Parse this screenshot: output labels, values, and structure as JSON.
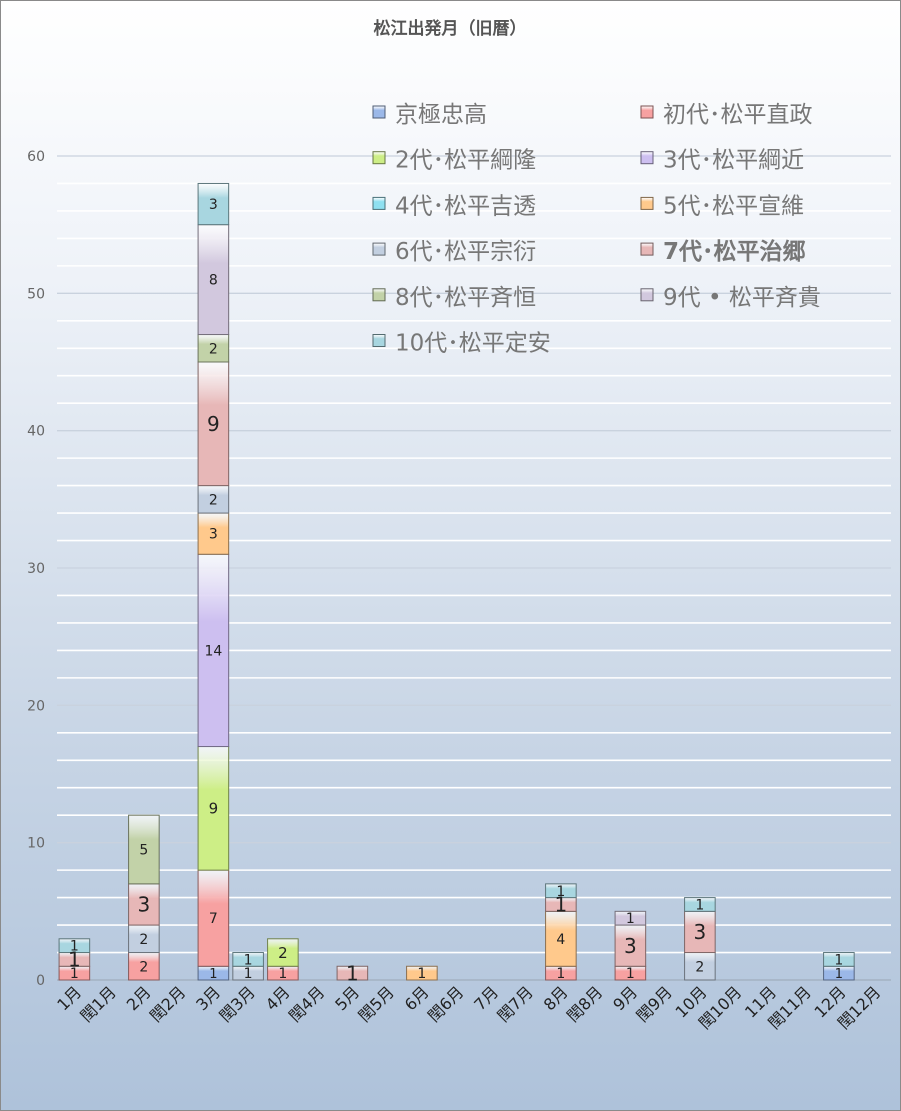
{
  "chart_data": {
    "type": "bar",
    "stacked": true,
    "title": "松江出発月（旧暦）",
    "xlabel": "",
    "ylabel": "",
    "ylim": [
      0,
      60
    ],
    "yticks": [
      0,
      10,
      20,
      30,
      40,
      50,
      60
    ],
    "minor_gridline_step": 2,
    "grid": true,
    "legend_position": "top-right",
    "categories": [
      "1月",
      "閏1月",
      "2月",
      "閏2月",
      "3月",
      "閏3月",
      "4月",
      "閏4月",
      "5月",
      "閏5月",
      "6月",
      "閏6月",
      "7月",
      "閏7月",
      "8月",
      "閏8月",
      "9月",
      "閏9月",
      "10月",
      "閏10月",
      "11月",
      "閏11月",
      "12月",
      "閏12月"
    ],
    "series": [
      {
        "name": "京極忠高",
        "color": "#9bb8e8",
        "label_color": "#ffffff",
        "label_size": 13,
        "values": [
          0,
          0,
          0,
          0,
          1,
          0,
          0,
          0,
          0,
          0,
          0,
          0,
          0,
          0,
          0,
          0,
          0,
          0,
          0,
          0,
          0,
          0,
          1,
          0
        ]
      },
      {
        "name": "初代･松平直政",
        "color": "#f7a1a1",
        "label_color": "#ffffff",
        "label_size": 14,
        "values": [
          1,
          0,
          2,
          0,
          7,
          0,
          1,
          0,
          0,
          0,
          0,
          0,
          0,
          0,
          1,
          0,
          1,
          0,
          0,
          0,
          0,
          0,
          0,
          0
        ]
      },
      {
        "name": "2代･松平綱隆",
        "color": "#cdee86",
        "label_color": "#222222",
        "label_size": 15,
        "values": [
          0,
          0,
          0,
          0,
          9,
          0,
          2,
          0,
          0,
          0,
          0,
          0,
          0,
          0,
          0,
          0,
          0,
          0,
          0,
          0,
          0,
          0,
          0,
          0
        ]
      },
      {
        "name": "3代･松平綱近",
        "color": "#cdbff0",
        "label_color": "#222222",
        "label_size": 14,
        "values": [
          0,
          0,
          0,
          0,
          14,
          0,
          0,
          0,
          0,
          0,
          0,
          0,
          0,
          0,
          0,
          0,
          0,
          0,
          0,
          0,
          0,
          0,
          0,
          0
        ]
      },
      {
        "name": "4代･松平吉透",
        "color": "#8fe0f0",
        "label_color": "#222222",
        "label_size": 14,
        "values": [
          0,
          0,
          0,
          0,
          0,
          0,
          0,
          0,
          0,
          0,
          0,
          0,
          0,
          0,
          0,
          0,
          0,
          0,
          0,
          0,
          0,
          0,
          0,
          0
        ]
      },
      {
        "name": "5代･松平宣維",
        "color": "#ffc98c",
        "label_color": "#222222",
        "label_size": 14,
        "values": [
          0,
          0,
          0,
          0,
          3,
          0,
          0,
          0,
          0,
          0,
          1,
          0,
          0,
          0,
          4,
          0,
          0,
          0,
          0,
          0,
          0,
          0,
          0,
          0
        ]
      },
      {
        "name": "6代･松平宗衍",
        "color": "#c2cfe0",
        "label_color": "#222222",
        "label_size": 14,
        "values": [
          0,
          0,
          2,
          0,
          2,
          1,
          0,
          0,
          0,
          0,
          0,
          0,
          0,
          0,
          0,
          0,
          0,
          0,
          2,
          0,
          0,
          0,
          0,
          0
        ]
      },
      {
        "name": "7代･松平治郷",
        "color": "#e7b7b7",
        "label_color": "#111111",
        "label_size": 20,
        "values": [
          1,
          0,
          3,
          0,
          9,
          0,
          0,
          0,
          1,
          0,
          0,
          0,
          0,
          0,
          1,
          0,
          3,
          0,
          3,
          0,
          0,
          0,
          0,
          0
        ]
      },
      {
        "name": "8代･松平斉恒",
        "color": "#c2d2a8",
        "label_color": "#222222",
        "label_size": 14,
        "values": [
          0,
          0,
          5,
          0,
          2,
          0,
          0,
          0,
          0,
          0,
          0,
          0,
          0,
          0,
          0,
          0,
          0,
          0,
          0,
          0,
          0,
          0,
          0,
          0
        ]
      },
      {
        "name": "9代 • 松平斉貴",
        "color": "#d2c8de",
        "label_color": "#222222",
        "label_size": 14,
        "values": [
          0,
          0,
          0,
          0,
          8,
          0,
          0,
          0,
          0,
          0,
          0,
          0,
          0,
          0,
          0,
          0,
          1,
          0,
          0,
          0,
          0,
          0,
          0,
          0
        ]
      },
      {
        "name": "10代･松平定安",
        "color": "#a8d6e0",
        "label_color": "#222222",
        "label_size": 14,
        "values": [
          1,
          0,
          0,
          0,
          3,
          1,
          0,
          0,
          0,
          0,
          0,
          0,
          0,
          0,
          1,
          0,
          0,
          0,
          1,
          0,
          0,
          0,
          1,
          0
        ]
      }
    ],
    "legend_text_colors": [
      "#c0393b",
      "#777777",
      "#777777",
      "#777777",
      "#777777",
      "#777777",
      "#777777",
      "#666666",
      "#777777",
      "#777777",
      "#777777"
    ],
    "legend_bold": [
      false,
      false,
      false,
      false,
      false,
      false,
      false,
      true,
      false,
      false,
      false
    ]
  }
}
